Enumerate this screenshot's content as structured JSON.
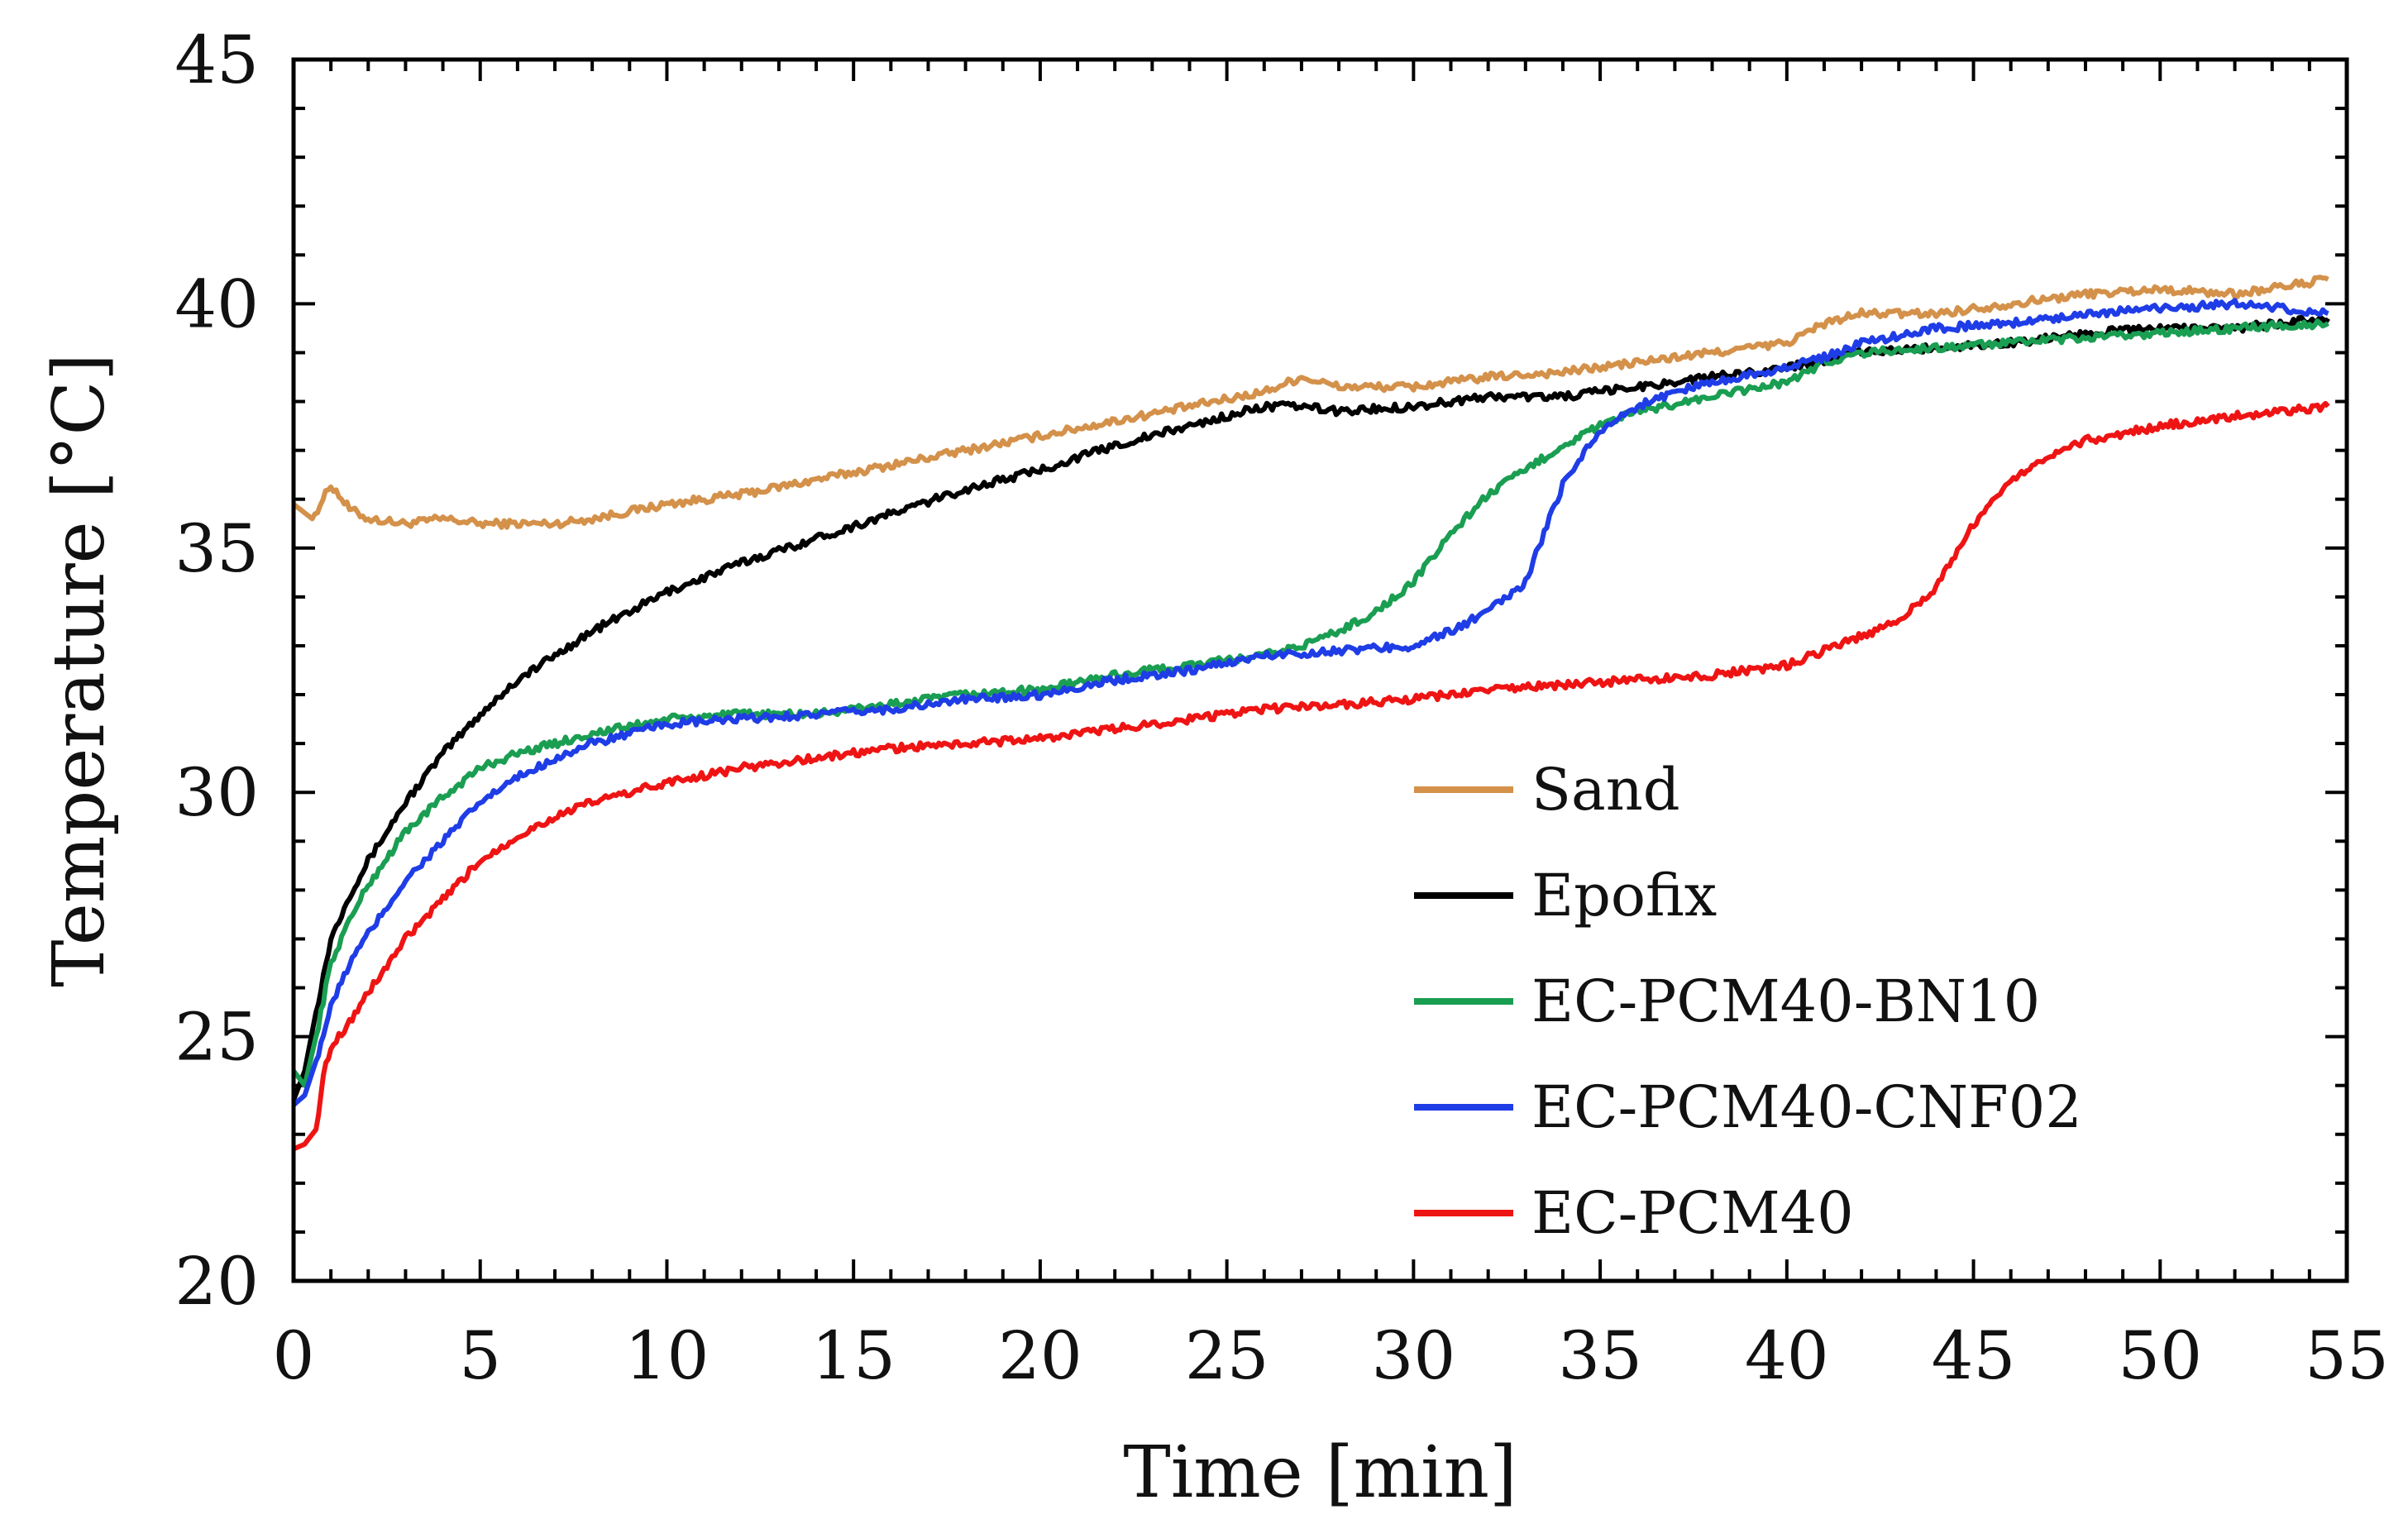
{
  "chart_data": {
    "type": "line",
    "title": "",
    "xlabel": "Time [min]",
    "ylabel": "Temperature [°C]",
    "xlim": [
      0,
      55
    ],
    "ylim": [
      20,
      45
    ],
    "xticks": [
      0,
      5,
      10,
      15,
      20,
      25,
      30,
      35,
      40,
      45,
      50,
      55
    ],
    "yticks": [
      20,
      25,
      30,
      35,
      40,
      45
    ],
    "xtick_labels": [
      "0",
      "5",
      "10",
      "15",
      "20",
      "25",
      "30",
      "35",
      "40",
      "45",
      "50",
      "55"
    ],
    "ytick_labels": [
      "20",
      "25",
      "30",
      "35",
      "40",
      "45"
    ],
    "grid": false,
    "legend_position": "center-right",
    "series": [
      {
        "name": "Sand",
        "color": "#d4914a",
        "x": [
          0,
          0.5,
          1,
          1.5,
          2,
          3,
          4,
          5,
          6,
          7,
          8,
          10,
          12,
          14,
          16,
          18,
          20,
          22,
          24,
          26,
          27,
          28,
          30,
          32,
          34,
          36,
          38,
          40,
          41,
          42,
          44,
          46,
          48,
          50,
          52,
          54.5
        ],
        "y": [
          35.9,
          35.6,
          36.3,
          35.8,
          35.6,
          35.5,
          35.6,
          35.5,
          35.5,
          35.5,
          35.6,
          35.9,
          36.1,
          36.4,
          36.7,
          37.0,
          37.3,
          37.6,
          37.9,
          38.2,
          38.5,
          38.3,
          38.3,
          38.5,
          38.6,
          38.8,
          39.0,
          39.2,
          39.6,
          39.8,
          39.8,
          40.0,
          40.2,
          40.3,
          40.2,
          40.5
        ]
      },
      {
        "name": "Epofix",
        "color": "#000000",
        "x": [
          0,
          0.3,
          0.6,
          1,
          1.5,
          2,
          3,
          4,
          5,
          6,
          7,
          8,
          10,
          12,
          14,
          16,
          18,
          20,
          22,
          24,
          26,
          27,
          28,
          30,
          32,
          34,
          36,
          38,
          40,
          42,
          44,
          46,
          48,
          50,
          52,
          54.5
        ],
        "y": [
          23.7,
          24.3,
          25.5,
          27.0,
          27.9,
          28.6,
          29.8,
          30.8,
          31.6,
          32.3,
          32.8,
          33.3,
          34.1,
          34.7,
          35.2,
          35.7,
          36.2,
          36.6,
          37.1,
          37.5,
          37.9,
          37.9,
          37.8,
          37.9,
          38.1,
          38.1,
          38.3,
          38.5,
          38.7,
          39.0,
          39.1,
          39.2,
          39.4,
          39.5,
          39.5,
          39.7
        ]
      },
      {
        "name": "EC-PCM40-BN10",
        "color": "#1a9e52",
        "x": [
          0,
          0.3,
          0.6,
          1,
          1.5,
          2,
          3,
          4,
          5,
          6,
          7,
          8,
          10,
          12,
          14,
          16,
          18,
          20,
          22,
          24,
          26,
          27,
          28,
          29,
          30,
          31,
          32,
          33,
          34,
          35,
          36,
          38,
          40,
          41,
          42,
          44,
          46,
          48,
          50,
          52,
          54.5
        ],
        "y": [
          24.3,
          24.0,
          25.0,
          26.5,
          27.4,
          28.1,
          29.2,
          29.9,
          30.5,
          30.8,
          31.0,
          31.2,
          31.5,
          31.6,
          31.6,
          31.8,
          32.0,
          32.1,
          32.4,
          32.6,
          32.8,
          33.0,
          33.3,
          33.7,
          34.3,
          35.3,
          36.1,
          36.6,
          37.1,
          37.5,
          37.8,
          38.1,
          38.4,
          38.8,
          39.0,
          39.1,
          39.2,
          39.3,
          39.4,
          39.5,
          39.6
        ]
      },
      {
        "name": "EC-PCM40-CNF02",
        "color": "#1f3de6",
        "x": [
          0,
          0.3,
          0.6,
          1,
          1.5,
          2,
          3,
          4,
          5,
          6,
          7,
          8,
          10,
          12,
          14,
          16,
          18,
          20,
          22,
          24,
          26,
          28,
          30,
          31,
          32,
          33,
          33.5,
          34,
          34.5,
          35,
          36,
          37,
          38,
          40,
          41,
          42,
          44,
          46,
          48,
          50,
          52,
          54.5
        ],
        "y": [
          23.6,
          23.8,
          24.5,
          25.6,
          26.5,
          27.1,
          28.2,
          29.0,
          29.8,
          30.3,
          30.7,
          31.0,
          31.4,
          31.5,
          31.6,
          31.7,
          31.9,
          32.0,
          32.3,
          32.5,
          32.8,
          32.9,
          33.0,
          33.3,
          33.7,
          34.3,
          35.3,
          36.3,
          36.9,
          37.4,
          37.9,
          38.2,
          38.4,
          38.7,
          38.9,
          39.2,
          39.5,
          39.6,
          39.8,
          39.9,
          40.0,
          39.8
        ]
      },
      {
        "name": "EC-PCM40",
        "color": "#ef1414",
        "x": [
          0,
          0.3,
          0.6,
          0.8,
          1,
          1.5,
          2,
          3,
          4,
          5,
          6,
          7,
          8,
          10,
          12,
          14,
          16,
          18,
          20,
          22,
          24,
          26,
          28,
          30,
          32,
          34,
          36,
          38,
          40,
          41,
          42,
          43,
          44,
          45,
          46,
          47,
          48,
          50,
          52,
          54.5
        ],
        "y": [
          22.7,
          22.8,
          23.1,
          24.2,
          24.8,
          25.3,
          25.9,
          27.0,
          27.8,
          28.6,
          29.1,
          29.5,
          29.8,
          30.2,
          30.5,
          30.7,
          30.9,
          31.0,
          31.1,
          31.3,
          31.5,
          31.7,
          31.8,
          31.9,
          32.1,
          32.2,
          32.3,
          32.4,
          32.6,
          32.9,
          33.2,
          33.5,
          34.2,
          35.5,
          36.4,
          36.9,
          37.2,
          37.5,
          37.7,
          37.9
        ]
      }
    ]
  }
}
